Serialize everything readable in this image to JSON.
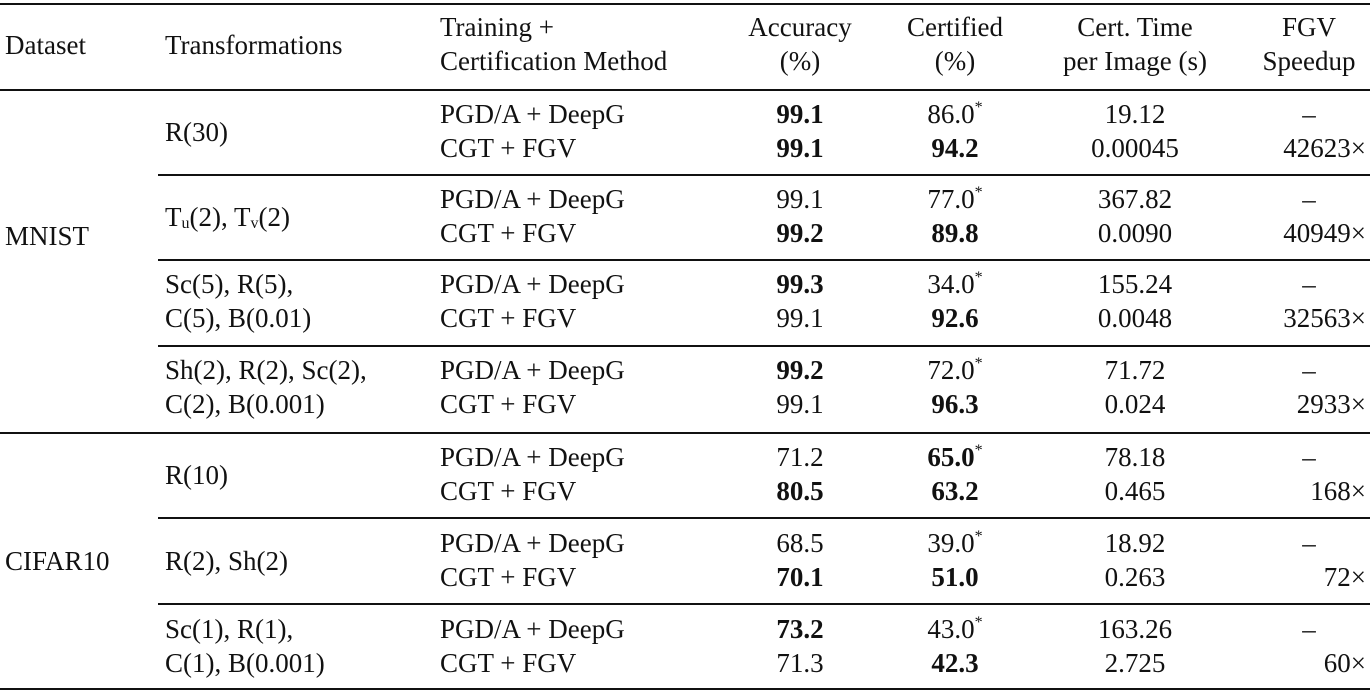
{
  "headers": {
    "dataset": "Dataset",
    "transformations": "Transformations",
    "method_line1": "Training +",
    "method_line2": "Certification Method",
    "accuracy_line1": "Accuracy",
    "accuracy_line2": "(%)",
    "certified_line1": "Certified",
    "certified_line2": "(%)",
    "time_line1": "Cert. Time",
    "time_line2": "per Image (s)",
    "speedup_line1": "FGV",
    "speedup_line2": "Speedup"
  },
  "groups": [
    {
      "dataset": "MNIST",
      "rows": [
        {
          "t1": "R(30)",
          "t2": "",
          "m1": "PGD/A + DeepG",
          "m2": "CGT + FGV",
          "a1": "99.1",
          "a2": "99.1",
          "c1": "86.0",
          "c2": "94.2",
          "ti1": "19.12",
          "ti2": "0.00045",
          "s1": "–",
          "s2": "42623×"
        },
        {
          "t1": "T",
          "t1_sub_a": "u",
          "t1_mid": "(2), T",
          "t1_sub_b": "v",
          "t1_end": "(2)",
          "m1": "PGD/A + DeepG",
          "m2": "CGT + FGV",
          "a1": "99.1",
          "a2": "99.2",
          "c1": "77.0",
          "c2": "89.8",
          "ti1": "367.82",
          "ti2": "0.0090",
          "s1": "–",
          "s2": "40949×"
        },
        {
          "t1": "Sc(5), R(5),",
          "t2": "C(5), B(0.01)",
          "m1": "PGD/A + DeepG",
          "m2": "CGT + FGV",
          "a1": "99.3",
          "a2": "99.1",
          "c1": "34.0",
          "c2": "92.6",
          "ti1": "155.24",
          "ti2": "0.0048",
          "s1": "–",
          "s2": "32563×"
        },
        {
          "t1": "Sh(2), R(2), Sc(2),",
          "t2": "C(2), B(0.001)",
          "m1": "PGD/A + DeepG",
          "m2": "CGT + FGV",
          "a1": "99.2",
          "a2": "99.1",
          "c1": "72.0",
          "c2": "96.3",
          "ti1": "71.72",
          "ti2": "0.024",
          "s1": "–",
          "s2": "2933×"
        }
      ]
    },
    {
      "dataset": "CIFAR10",
      "rows": [
        {
          "t1": "R(10)",
          "t2": "",
          "m1": "PGD/A + DeepG",
          "m2": "CGT + FGV",
          "a1": "71.2",
          "a2": "80.5",
          "c1": "65.0",
          "c2": "63.2",
          "ti1": "78.18",
          "ti2": "0.465",
          "s1": "–",
          "s2": "168×"
        },
        {
          "t1": "R(2), Sh(2)",
          "t2": "",
          "m1": "PGD/A + DeepG",
          "m2": "CGT + FGV",
          "a1": "68.5",
          "a2": "70.1",
          "c1": "39.0",
          "c2": "51.0",
          "ti1": "18.92",
          "ti2": "0.263",
          "s1": "–",
          "s2": "72×"
        },
        {
          "t1": "Sc(1), R(1),",
          "t2": "C(1), B(0.001)",
          "m1": "PGD/A + DeepG",
          "m2": "CGT + FGV",
          "a1": "73.2",
          "a2": "71.3",
          "c1": "43.0",
          "c2": "42.3",
          "ti1": "163.26",
          "ti2": "2.725",
          "s1": "–",
          "s2": "60×"
        }
      ]
    }
  ],
  "footnote_marker": "*"
}
